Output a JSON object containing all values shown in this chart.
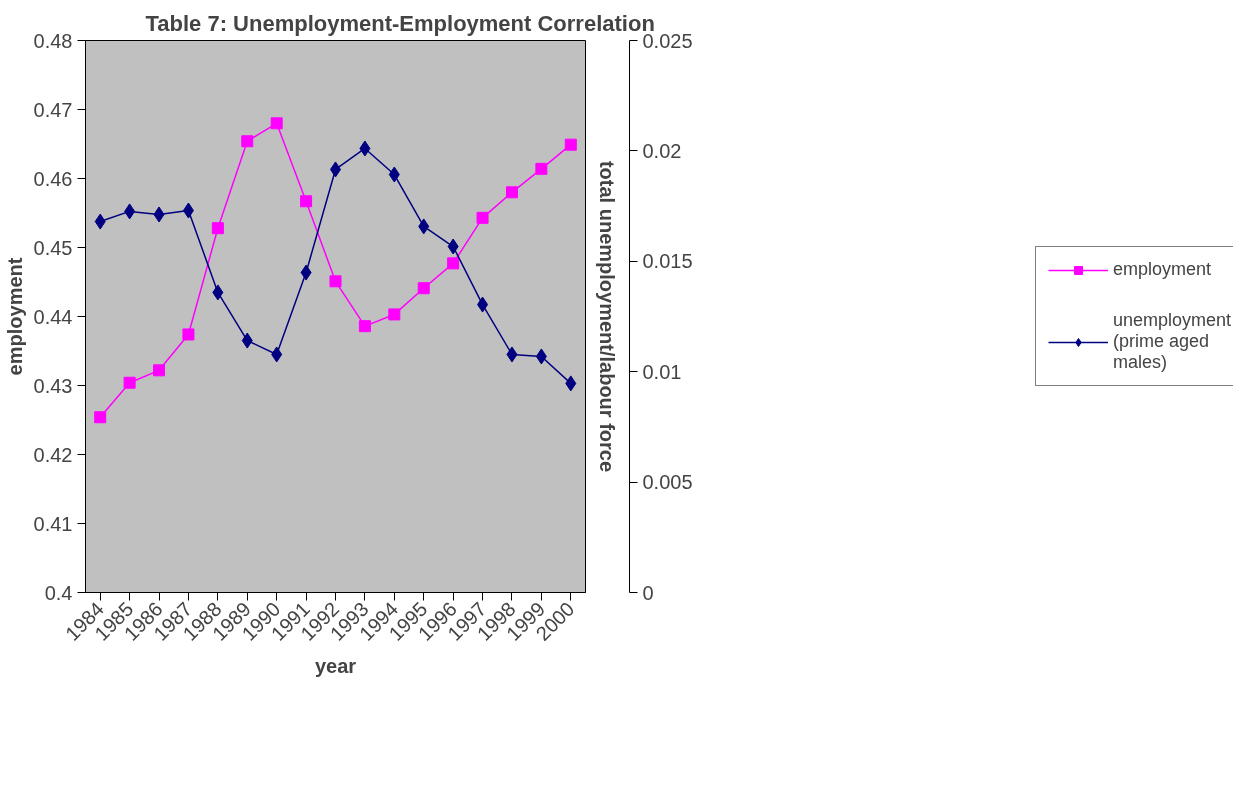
{
  "chart_data": {
    "type": "line",
    "title": "Table 7: Unemployment-Employment Correlation",
    "xlabel": "year",
    "ylabel": "employment",
    "y2label": "total unemployment/labour force",
    "categories": [
      "1984",
      "1985",
      "1986",
      "1987",
      "1988",
      "1989",
      "1990",
      "1991",
      "1992",
      "1993",
      "1994",
      "1995",
      "1996",
      "1997",
      "1998",
      "1999",
      "2000"
    ],
    "series": [
      {
        "name": "employment",
        "color": "#ff00ff",
        "marker": "square",
        "values": [
          0.4254,
          0.4304,
          0.4322,
          0.4374,
          0.4528,
          0.4654,
          0.468,
          0.4567,
          0.4451,
          0.4386,
          0.4403,
          0.4441,
          0.4477,
          0.4543,
          0.458,
          0.4614,
          0.4649
        ]
      },
      {
        "name": "unemployment (prime aged males)",
        "color": "#000080",
        "marker": "diamond",
        "axis": "y2",
        "values": [
          0.0168,
          0.01726,
          0.01712,
          0.0173,
          0.01359,
          0.01141,
          0.01078,
          0.01449,
          0.01916,
          0.02011,
          0.01893,
          0.01658,
          0.01567,
          0.01304,
          0.01078,
          0.01069,
          0.00947
        ]
      }
    ],
    "ylim": [
      0.4,
      0.48
    ],
    "yticks": [
      0.4,
      0.41,
      0.42,
      0.43,
      0.44,
      0.45,
      0.46,
      0.47,
      0.48
    ],
    "y2lim": [
      0,
      0.025
    ],
    "y2ticks": [
      0,
      0.005,
      0.01,
      0.015,
      0.02,
      0.025
    ],
    "grid": false,
    "legend": "right",
    "line_style": "solid"
  }
}
